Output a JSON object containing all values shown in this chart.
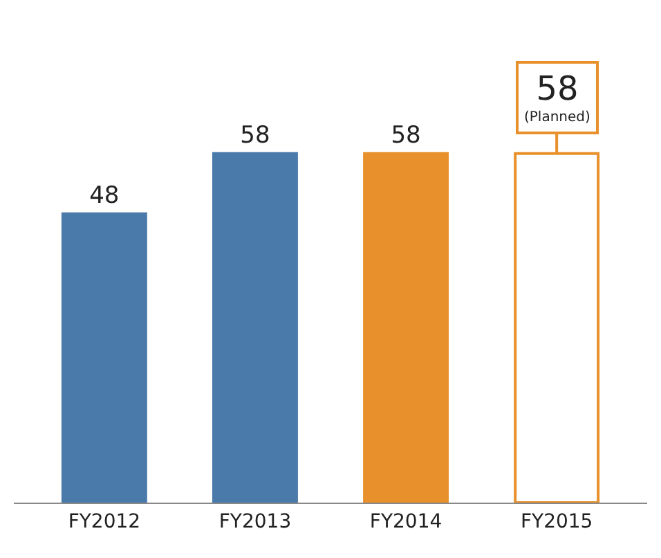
{
  "chart_data": {
    "type": "bar",
    "categories": [
      "FY2012",
      "FY2013",
      "FY2014",
      "FY2015"
    ],
    "values": [
      48,
      58,
      58,
      58
    ],
    "colors": [
      "#4a7aaa",
      "#4a7aaa",
      "#e8912c",
      "#ffffff"
    ],
    "value_labels": [
      "48",
      "58",
      "58",
      null
    ],
    "annotations": [
      {
        "text": "58\n(Planned)",
        "x": "FY2015",
        "y": 58
      }
    ],
    "legend": false
  }
}
